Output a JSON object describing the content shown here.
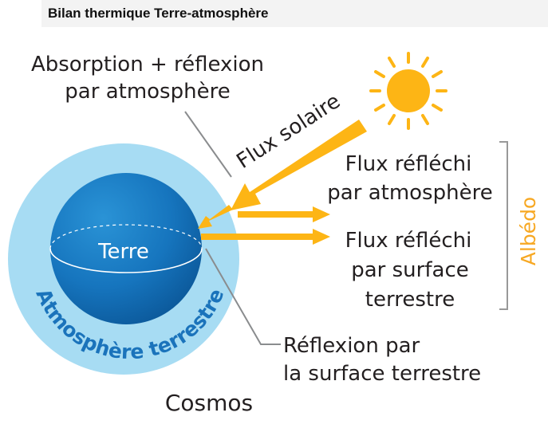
{
  "header": {
    "title": "Bilan thermique Terre-atmosphère"
  },
  "diagram": {
    "labels": {
      "absorption_line1": "Absorption + réflexion",
      "absorption_line2": "par atmosphère",
      "solar_flux": "Flux solaire",
      "reflected_atmo_line1": "Flux réfléchi",
      "reflected_atmo_line2": "par atmosphère",
      "reflected_surface_line1": "Flux réfléchi",
      "reflected_surface_line2": "par surface",
      "reflected_surface_line3": "terrestre",
      "albedo": "Albédo",
      "earth": "Terre",
      "atmosphere": "Atmosphère terrestre",
      "surface_reflection_line1": "Réflexion par",
      "surface_reflection_line2": "la surface terrestre",
      "cosmos": "Cosmos"
    },
    "colors": {
      "atmosphere": "#a7dcf3",
      "earth_light": "#1b84c8",
      "earth_dark": "#0c5a9c",
      "atmosphere_text": "#1a73bb",
      "sun": "#fdb515",
      "flux_arrow": "#fdb515",
      "albedo_text": "#f7a823",
      "pointer_line": "#8a8c8e",
      "bracket": "#999999"
    },
    "icons": {
      "sun": "sun-icon"
    }
  }
}
